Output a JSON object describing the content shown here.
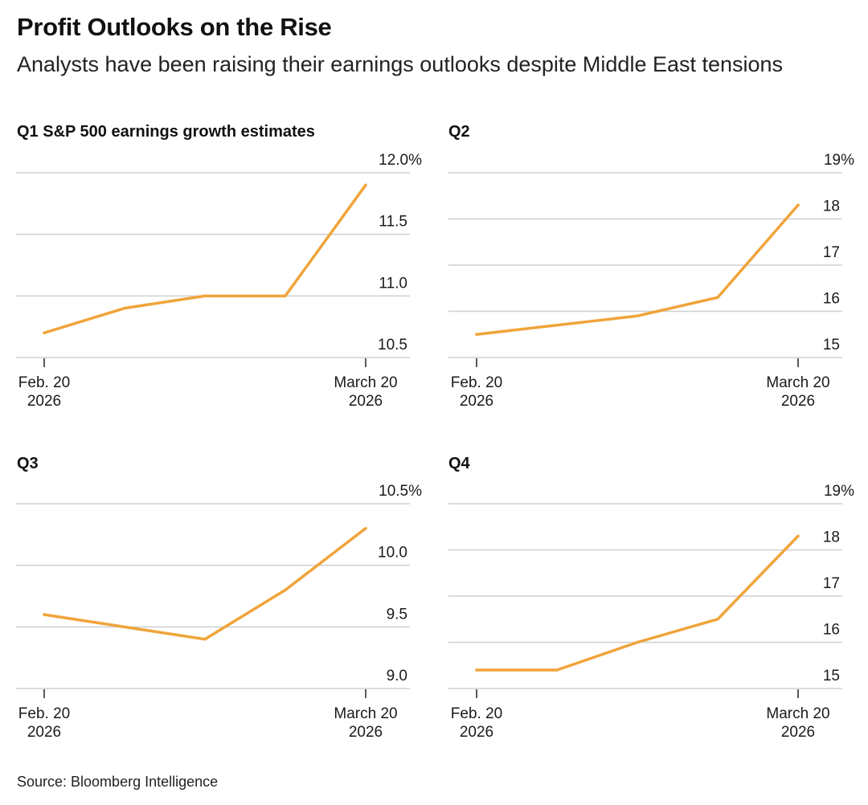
{
  "title": "Profit Outlooks on the Rise",
  "subtitle": "Analysts have been raising their earnings outlooks despite Middle East tensions",
  "source": "Source: Bloomberg Intelligence",
  "line_color": "#f0a43a",
  "chart_data": [
    {
      "type": "line",
      "title": "Q1 S&P 500 earnings growth estimates",
      "x_labels": [
        [
          "Feb. 20",
          "2026"
        ],
        [
          "March 20",
          "2026"
        ]
      ],
      "y_ticks": [
        "10.5",
        "11.0",
        "11.5",
        "12.0%"
      ],
      "ylim": [
        10.5,
        12.0
      ],
      "values": [
        10.7,
        10.9,
        11.0,
        11.0,
        11.9
      ],
      "grid": true
    },
    {
      "type": "line",
      "title": "Q2",
      "x_labels": [
        [
          "Feb. 20",
          "2026"
        ],
        [
          "March 20",
          "2026"
        ]
      ],
      "y_ticks": [
        "15",
        "16",
        "17",
        "18",
        "19%"
      ],
      "ylim": [
        15,
        19
      ],
      "values": [
        15.5,
        15.7,
        15.9,
        16.3,
        18.3
      ],
      "grid": true
    },
    {
      "type": "line",
      "title": "Q3",
      "x_labels": [
        [
          "Feb. 20",
          "2026"
        ],
        [
          "March 20",
          "2026"
        ]
      ],
      "y_ticks": [
        "9.0",
        "9.5",
        "10.0",
        "10.5%"
      ],
      "ylim": [
        9.0,
        10.5
      ],
      "values": [
        9.6,
        9.5,
        9.4,
        9.8,
        10.3
      ],
      "grid": true
    },
    {
      "type": "line",
      "title": "Q4",
      "x_labels": [
        [
          "Feb. 20",
          "2026"
        ],
        [
          "March 20",
          "2026"
        ]
      ],
      "y_ticks": [
        "15",
        "16",
        "17",
        "18",
        "19%"
      ],
      "ylim": [
        15,
        19
      ],
      "values": [
        15.4,
        15.4,
        16.0,
        16.5,
        18.3
      ],
      "grid": true
    }
  ]
}
